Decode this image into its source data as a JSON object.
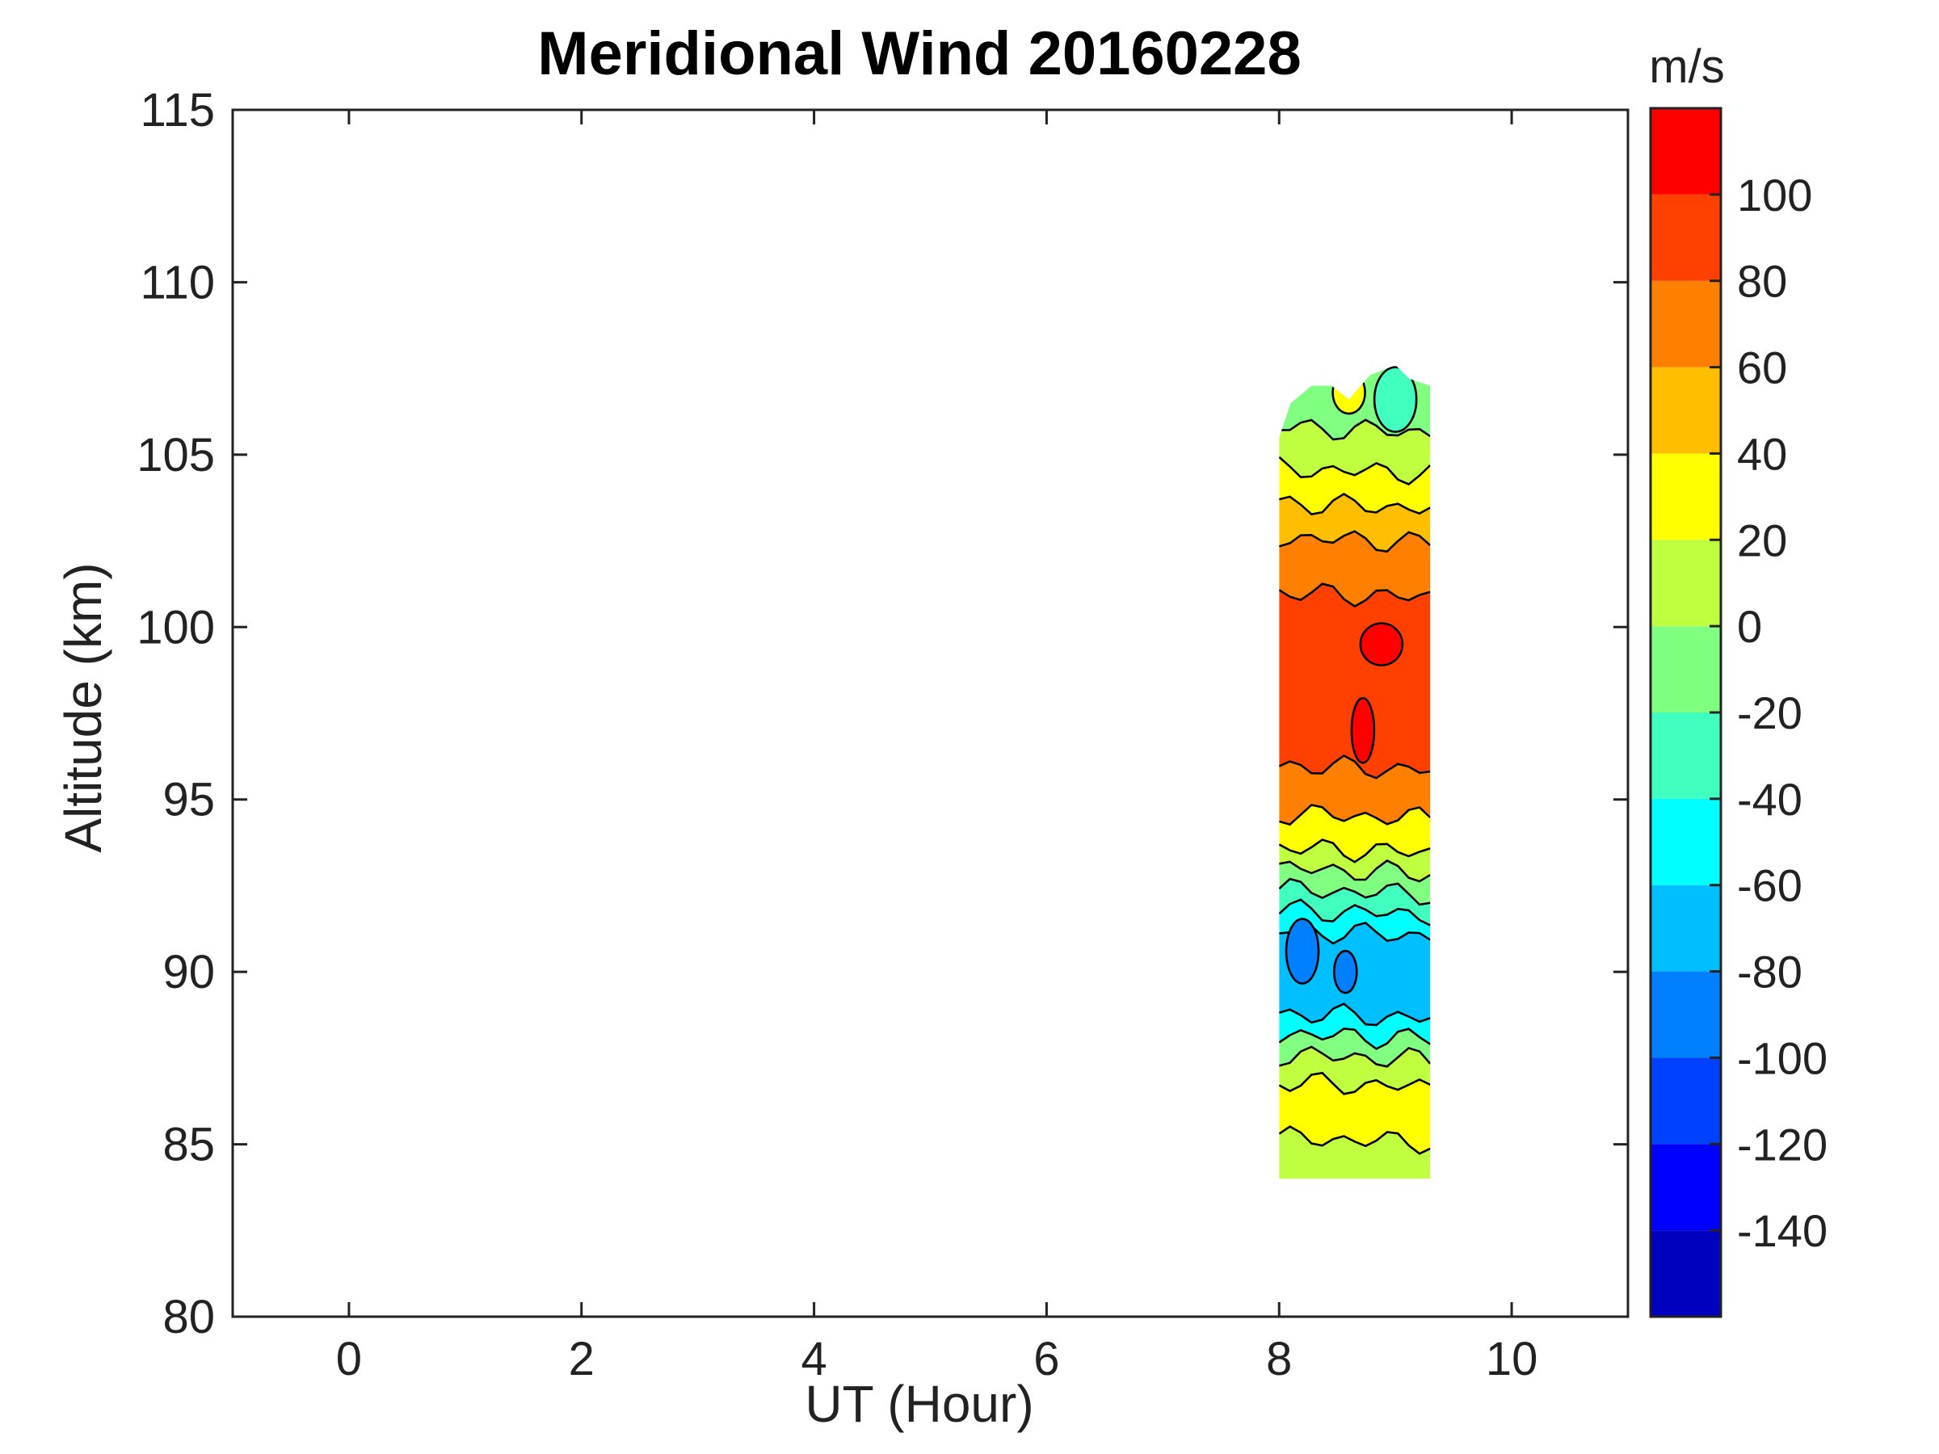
{
  "chart_data": {
    "type": "heatmap",
    "title": "Meridional Wind 20160228",
    "xlabel": "UT (Hour)",
    "ylabel": "Altitude (km)",
    "xlim": [
      -1,
      11
    ],
    "ylim": [
      80,
      115
    ],
    "xticks": [
      0,
      2,
      4,
      6,
      8,
      10
    ],
    "yticks": [
      80,
      85,
      90,
      95,
      100,
      105,
      110,
      115
    ],
    "colorbar": {
      "unit_label": "m/s",
      "range": [
        -160,
        120
      ],
      "ticks": [
        100,
        80,
        60,
        40,
        20,
        0,
        -20,
        -40,
        -60,
        -80,
        -100,
        -120,
        -140
      ],
      "levels": [
        {
          "min": -160,
          "max": -140,
          "color": "#0000bf"
        },
        {
          "min": -140,
          "max": -120,
          "color": "#0000ff"
        },
        {
          "min": -120,
          "max": -100,
          "color": "#0040ff"
        },
        {
          "min": -100,
          "max": -80,
          "color": "#0080ff"
        },
        {
          "min": -80,
          "max": -60,
          "color": "#00bfff"
        },
        {
          "min": -60,
          "max": -40,
          "color": "#00ffff"
        },
        {
          "min": -40,
          "max": -20,
          "color": "#40ffbf"
        },
        {
          "min": -20,
          "max": 0,
          "color": "#80ff80"
        },
        {
          "min": 0,
          "max": 20,
          "color": "#bfff40"
        },
        {
          "min": 20,
          "max": 40,
          "color": "#ffff00"
        },
        {
          "min": 40,
          "max": 60,
          "color": "#ffbf00"
        },
        {
          "min": 60,
          "max": 80,
          "color": "#ff8000"
        },
        {
          "min": 80,
          "max": 100,
          "color": "#ff4000"
        },
        {
          "min": 100,
          "max": 120,
          "color": "#ff0000"
        }
      ]
    },
    "data_region": {
      "ut_start": 8.0,
      "ut_end": 9.3,
      "alt_min": 84,
      "alt_max": 107.5
    },
    "bands": [
      {
        "alt_min": 84.0,
        "alt_max": 85.2,
        "value": 10
      },
      {
        "alt_min": 85.2,
        "alt_max": 86.8,
        "value": 30
      },
      {
        "alt_min": 86.8,
        "alt_max": 87.6,
        "value": 10
      },
      {
        "alt_min": 87.6,
        "alt_max": 88.2,
        "value": -10
      },
      {
        "alt_min": 88.2,
        "alt_max": 88.8,
        "value": -50
      },
      {
        "alt_min": 88.8,
        "alt_max": 91.2,
        "value": -70
      },
      {
        "alt_min": 91.2,
        "alt_max": 91.8,
        "value": -50
      },
      {
        "alt_min": 91.8,
        "alt_max": 92.4,
        "value": -30
      },
      {
        "alt_min": 92.4,
        "alt_max": 93.0,
        "value": -10
      },
      {
        "alt_min": 93.0,
        "alt_max": 93.6,
        "value": 10
      },
      {
        "alt_min": 93.6,
        "alt_max": 94.6,
        "value": 30
      },
      {
        "alt_min": 94.6,
        "alt_max": 96.0,
        "value": 70
      },
      {
        "alt_min": 96.0,
        "alt_max": 101.0,
        "value": 90
      },
      {
        "alt_min": 101.0,
        "alt_max": 102.6,
        "value": 70
      },
      {
        "alt_min": 102.6,
        "alt_max": 103.6,
        "value": 50
      },
      {
        "alt_min": 103.6,
        "alt_max": 104.6,
        "value": 30
      },
      {
        "alt_min": 104.6,
        "alt_max": 105.8,
        "value": 10
      },
      {
        "alt_min": 105.8,
        "alt_max": 107.5,
        "value": -10
      }
    ],
    "patches": [
      {
        "ut": 8.57,
        "alt": 90.0,
        "value": -90
      },
      {
        "ut": 8.2,
        "alt": 90.6,
        "value": -90
      },
      {
        "ut": 8.88,
        "alt": 99.5,
        "value": 110
      },
      {
        "ut": 8.72,
        "alt": 97.0,
        "value": 110
      },
      {
        "ut": 8.6,
        "alt": 106.8,
        "value": 30
      },
      {
        "ut": 9.0,
        "alt": 106.6,
        "value": -30
      }
    ]
  }
}
